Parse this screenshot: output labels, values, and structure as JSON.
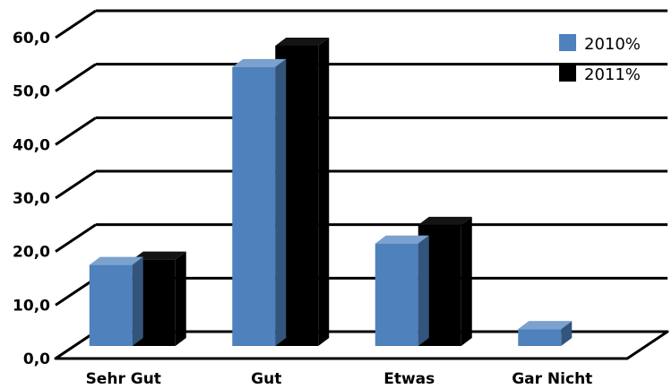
{
  "chart_data": {
    "type": "bar",
    "title": "",
    "xlabel": "",
    "ylabel": "",
    "categories": [
      "Sehr Gut",
      "Gut",
      "Etwas",
      "Gar Nicht"
    ],
    "series": [
      {
        "name": "2010%",
        "values": [
          17.5,
          54.5,
          21.5,
          5.5
        ],
        "color": "#4f81bd"
      },
      {
        "name": "2011%",
        "values": [
          18.5,
          58.5,
          25.0,
          0
        ]
      }
    ],
    "colors": {
      "2010%": "#4f81bd",
      "2011%": "#000000"
    },
    "ylim": [
      0,
      60
    ],
    "yticks": [
      "0,0",
      "10,0",
      "20,0",
      "30,0",
      "40,0",
      "50,0",
      "60,0"
    ],
    "grid": true,
    "style": "3d-clustered-column",
    "legend": {
      "position": "top-right",
      "entries": [
        "2010%",
        "2011%"
      ]
    }
  }
}
